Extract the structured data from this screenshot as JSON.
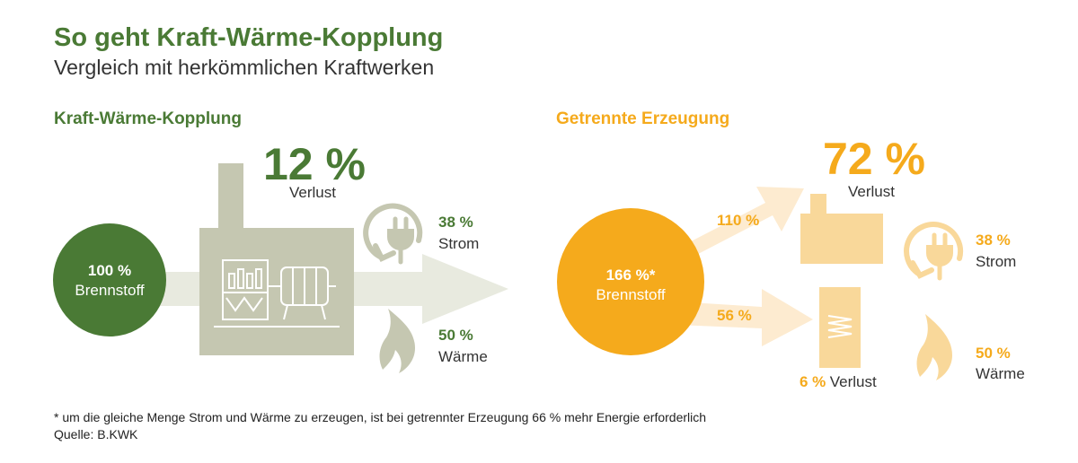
{
  "header": {
    "title": "So geht Kraft-Wärme-Kopplung",
    "subtitle": "Vergleich mit herkömmlichen Kraftwerken"
  },
  "chp": {
    "heading": "Kraft-Wärme-Kopplung",
    "fuel_pct": "100 %",
    "fuel_label": "Brennstoff",
    "loss_pct": "12 %",
    "loss_label": "Verlust",
    "power_pct": "38 %",
    "power_label": "Strom",
    "heat_pct": "50 %",
    "heat_label": "Wärme"
  },
  "separate": {
    "heading": "Getrennte Erzeugung",
    "fuel_pct": "166 %*",
    "fuel_label": "Brennstoff",
    "flow_power_pct": "110 %",
    "flow_heat_pct": "56 %",
    "loss_pct": "72 %",
    "loss_label": "Verlust",
    "power_pct": "38 %",
    "power_label": "Strom",
    "heat_pct": "50 %",
    "heat_label": "Wärme",
    "boiler_loss_pct": "6 %",
    "boiler_loss_label": "Verlust"
  },
  "footer": {
    "note": "* um die gleiche Menge Strom und Wärme zu erzeugen, ist bei getrennter Erzeugung 66 % mehr Energie erforderlich",
    "source": "Quelle: B.KWK"
  },
  "colors": {
    "green": "#4a7a35",
    "sage": "#c5c7b1",
    "light_sage": "#e8eadf",
    "orange": "#f5aa1c",
    "light_orange": "#f9d89a",
    "pale_orange": "#fdebd0"
  },
  "icons": [
    "factory-icon",
    "turbine-icon",
    "plug-cycle-icon",
    "flame-icon",
    "boiler-coil-icon"
  ]
}
